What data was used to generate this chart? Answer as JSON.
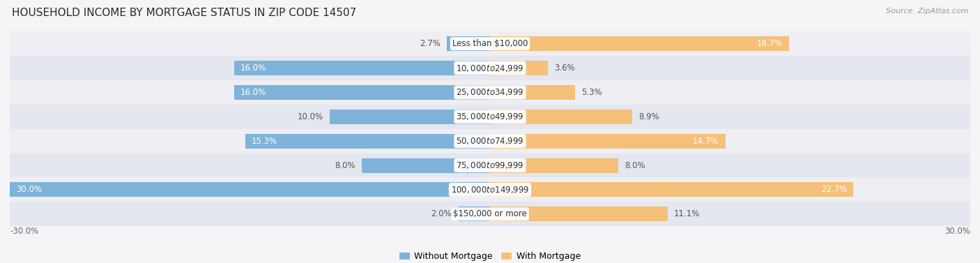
{
  "title": "HOUSEHOLD INCOME BY MORTGAGE STATUS IN ZIP CODE 14507",
  "source": "Source: ZipAtlas.com",
  "categories": [
    "Less than $10,000",
    "$10,000 to $24,999",
    "$25,000 to $34,999",
    "$35,000 to $49,999",
    "$50,000 to $74,999",
    "$75,000 to $99,999",
    "$100,000 to $149,999",
    "$150,000 or more"
  ],
  "without_mortgage": [
    2.7,
    16.0,
    16.0,
    10.0,
    15.3,
    8.0,
    30.0,
    2.0
  ],
  "with_mortgage": [
    18.7,
    3.6,
    5.3,
    8.9,
    14.7,
    8.0,
    22.7,
    11.1
  ],
  "color_without": "#7fb3d9",
  "color_with": "#f5c07a",
  "row_colors": [
    "#eeeef3",
    "#e4e7f0"
  ],
  "xlim_left": -30,
  "xlim_right": 30,
  "bar_height": 0.6,
  "title_fontsize": 11,
  "label_fontsize": 8.5,
  "cat_fontsize": 8.5,
  "legend_fontsize": 9,
  "source_fontsize": 8,
  "without_label_inside_threshold": 12,
  "with_label_inside_threshold": 12
}
